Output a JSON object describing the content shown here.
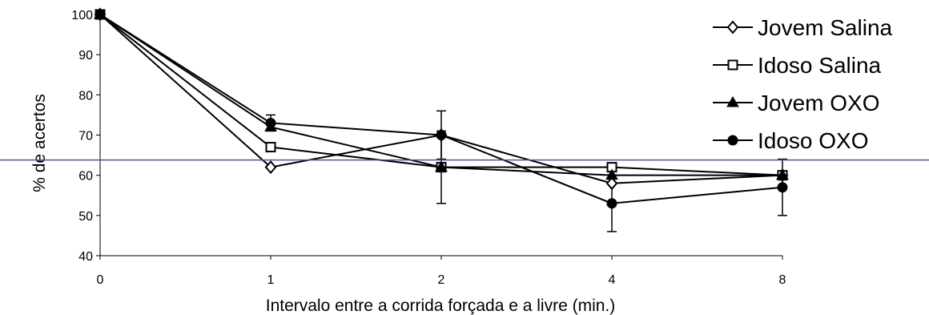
{
  "chart_data": {
    "type": "line",
    "title": "",
    "xlabel": "Intervalo entre a corrida forçada e a livre (min.)",
    "ylabel": "% de acertos",
    "categories": [
      "0",
      "1",
      "2",
      "4",
      "8"
    ],
    "yticks": [
      40,
      50,
      60,
      70,
      80,
      90,
      100
    ],
    "ylim": [
      40,
      100
    ],
    "grid": false,
    "legend_position": "top-right",
    "reference_line": {
      "y": 63.8,
      "color": "#6a4c93"
    },
    "series": [
      {
        "name": "Jovem Salina",
        "marker": "diamond-open",
        "values": [
          100,
          62,
          70,
          58,
          60
        ],
        "errors": [
          0,
          0,
          0,
          0,
          0
        ]
      },
      {
        "name": "Idoso Salina",
        "marker": "square-open",
        "values": [
          100,
          67,
          62,
          62,
          60
        ],
        "errors": [
          0,
          0,
          0,
          0,
          0
        ]
      },
      {
        "name": "Jovem OXO",
        "marker": "triangle-filled",
        "values": [
          100,
          72,
          62,
          60,
          60
        ],
        "errors": [
          0,
          0,
          9,
          0,
          0
        ]
      },
      {
        "name": "Idoso OXO",
        "marker": "circle-filled",
        "values": [
          100,
          73,
          70,
          53,
          57
        ],
        "errors": [
          0,
          2,
          6,
          7,
          7
        ]
      }
    ]
  }
}
